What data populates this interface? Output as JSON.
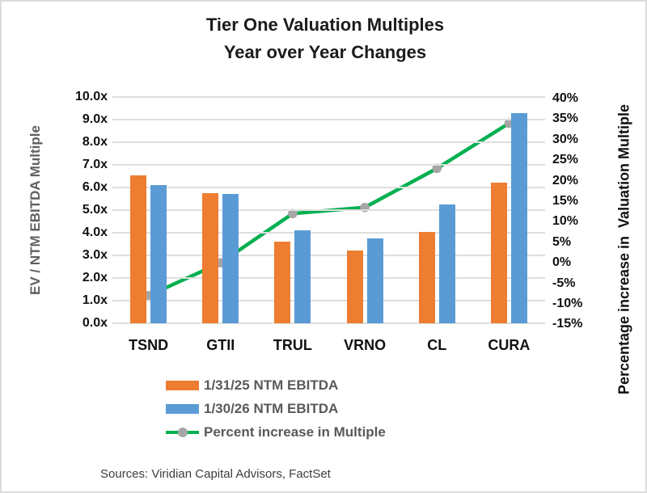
{
  "title": {
    "line1": "Tier One Valuation Multiples",
    "line2": "Year over Year Changes"
  },
  "axes": {
    "left": {
      "title": "EV / NTM EBITDA Multiple",
      "ticks": [
        "10.0x",
        "9.0x",
        "8.0x",
        "7.0x",
        "6.0x",
        "5.0x",
        "4.0x",
        "3.0x",
        "2.0x",
        "1.0x",
        "0.0x"
      ]
    },
    "right": {
      "title": "Percentage increase in  Valuation Multiple",
      "ticks": [
        "40%",
        "35%",
        "30%",
        "25%",
        "20%",
        "15%",
        "10%",
        "5%",
        "0%",
        "-5%",
        "-10%",
        "-15%"
      ]
    }
  },
  "legend": [
    {
      "label": "1/31/25 NTM EBITDA",
      "swatch": "bar",
      "color": "#ED7D31"
    },
    {
      "label": "1/30/26 NTM EBITDA",
      "swatch": "bar",
      "color": "#5B9BD5"
    },
    {
      "label": "Percent increase in Multiple",
      "swatch": "line",
      "color": "#00B050",
      "marker_color": "#A6A6A6"
    }
  ],
  "source": "Sources: Viridian Capital Advisors, FactSet",
  "colors": {
    "bar_orange": "#ED7D31",
    "bar_blue": "#5B9BD5",
    "line_green": "#00B050",
    "marker_gray": "#A6A6A6",
    "gridline": "#DEDEDE",
    "legend_text": "#595959",
    "left_axis_title_text": "#606060"
  },
  "chart_data": {
    "type": "bar",
    "subtype": "combo-bar-line",
    "title": "Tier One Valuation Multiples Year over Year Changes",
    "categories": [
      "TSND",
      "GTII",
      "TRUL",
      "VRNO",
      "CL",
      "CURA"
    ],
    "series": [
      {
        "name": "1/31/25 NTM EBITDA",
        "type": "bar",
        "axis": "left",
        "color": "#ED7D31",
        "values": [
          6.55,
          5.75,
          3.6,
          3.2,
          4.05,
          6.2
        ]
      },
      {
        "name": "1/30/26 NTM EBITDA",
        "type": "bar",
        "axis": "left",
        "color": "#5B9BD5",
        "values": [
          6.1,
          5.7,
          4.1,
          3.75,
          5.25,
          9.3
        ]
      },
      {
        "name": "Percent increase in Multiple",
        "type": "line",
        "axis": "right",
        "color": "#00B050",
        "marker_color": "#A6A6A6",
        "values": [
          -8,
          0,
          12,
          13.5,
          23,
          34
        ]
      }
    ],
    "left_axis": {
      "label": "EV / NTM EBITDA Multiple",
      "min": 0,
      "max": 10,
      "tick_step": 1,
      "unit": "x"
    },
    "right_axis": {
      "label": "Percentage increase in  Valuation Multiple",
      "min": -15,
      "max": 40,
      "tick_step": 5,
      "unit": "%"
    },
    "grid": "horizontal",
    "legend_position": "bottom-left"
  }
}
